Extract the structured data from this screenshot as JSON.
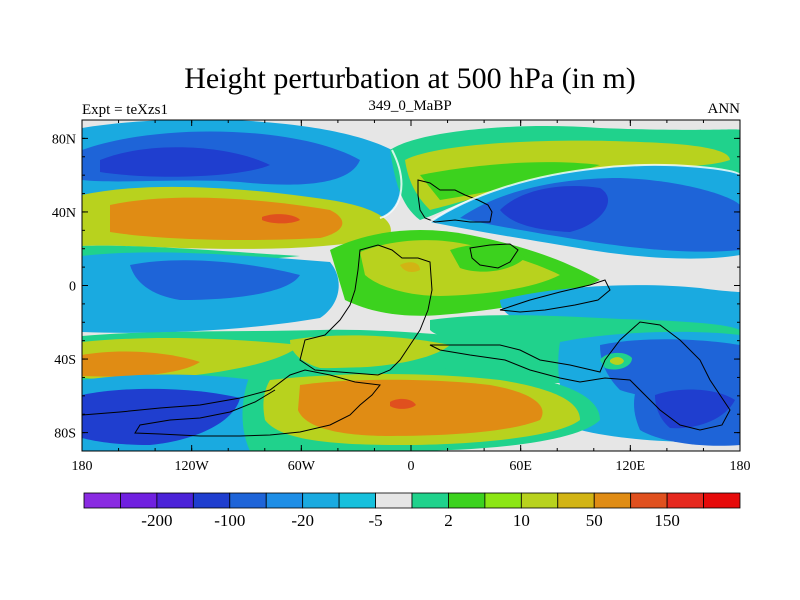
{
  "chart_data": {
    "type": "heatmap",
    "title": "Height perturbation at 500 hPa (in m)",
    "subtitle_left": "Expt = teXzs1",
    "subtitle_center": "349_0_MaBP",
    "subtitle_right": "ANN",
    "xlim": [
      -180,
      180
    ],
    "ylim": [
      -90,
      90
    ],
    "x_ticks": [
      {
        "value": -180,
        "label": "180"
      },
      {
        "value": -120,
        "label": "120W"
      },
      {
        "value": -60,
        "label": "60W"
      },
      {
        "value": 0,
        "label": "0"
      },
      {
        "value": 60,
        "label": "60E"
      },
      {
        "value": 120,
        "label": "120E"
      },
      {
        "value": 180,
        "label": "180"
      }
    ],
    "y_ticks": [
      {
        "value": 80,
        "label": "80N"
      },
      {
        "value": 40,
        "label": "40N"
      },
      {
        "value": 0,
        "label": "0"
      },
      {
        "value": -40,
        "label": "40S"
      },
      {
        "value": -80,
        "label": "80S"
      }
    ],
    "colorbar": {
      "colors": [
        "#8a2be2",
        "#7020e0",
        "#4b22d8",
        "#1f3ecf",
        "#1e64d8",
        "#1e8ee6",
        "#1aaae0",
        "#17c0dc",
        "#e6e6e6",
        "#20d28c",
        "#3cd21e",
        "#8ce614",
        "#b8d21e",
        "#d2b414",
        "#e08c14",
        "#e0501e",
        "#e6281e",
        "#e60a0a"
      ],
      "labels": [
        {
          "after_index": 1,
          "text": "-200"
        },
        {
          "after_index": 3,
          "text": "-100"
        },
        {
          "after_index": 5,
          "text": "-20"
        },
        {
          "after_index": 7,
          "text": "-5"
        },
        {
          "after_index": 9,
          "text": "2"
        },
        {
          "after_index": 11,
          "text": "10"
        },
        {
          "after_index": 13,
          "text": "50"
        },
        {
          "after_index": 15,
          "text": "150"
        }
      ]
    },
    "field_colors": {
      "background": "#e6e6e6",
      "light_blue": "#1aaae0",
      "mid_blue": "#1e64d8",
      "deep_blue": "#1f3ecf",
      "green_teal": "#20d28c",
      "green": "#3cd21e",
      "yellow_green": "#b8d21e",
      "orange": "#e08c14",
      "dark_orange": "#e0501e"
    }
  }
}
